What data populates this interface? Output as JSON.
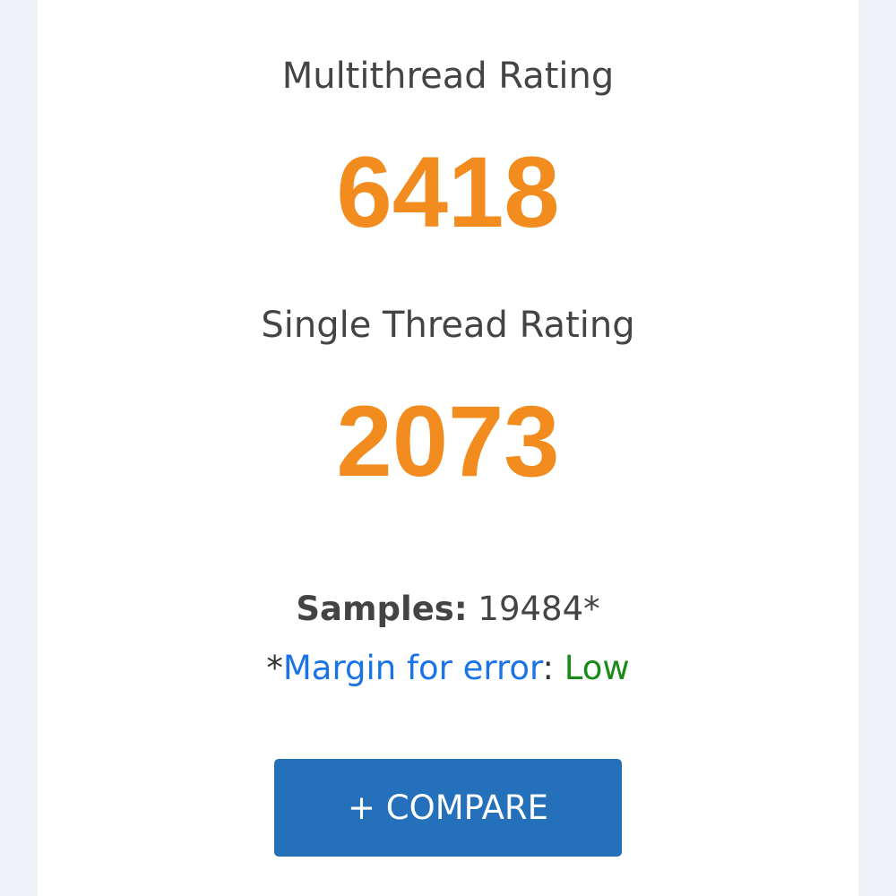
{
  "multithread": {
    "label": "Multithread Rating",
    "value": "6418"
  },
  "single": {
    "label": "Single Thread Rating",
    "value": "2073"
  },
  "samples": {
    "label": "Samples:",
    "value": "19484*"
  },
  "margin": {
    "prefix": "*",
    "link": "Margin for error",
    "sep": ":",
    "value": "Low"
  },
  "compare_button": "+ COMPARE",
  "colors": {
    "accent": "#f28c1e",
    "button": "#2570bb",
    "link": "#1a73e8",
    "low": "#1a8a1a"
  }
}
